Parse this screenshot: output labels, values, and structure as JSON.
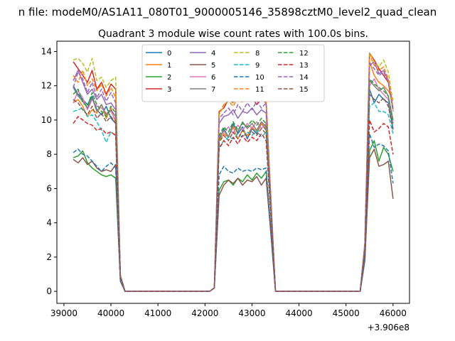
{
  "chart_data": {
    "type": "line",
    "suptitle": "n file: modeM0/AS1A11_080T01_9000005146_35898cztM0_level2_quad_clean",
    "title": "Quadrant 3 module wise count rates with 100.0s bins.",
    "xlabel": "",
    "ylabel": "",
    "x_offset_label": "+3.906e8",
    "xlim": [
      38850,
      46350
    ],
    "ylim": [
      -0.7,
      14.6
    ],
    "xticks": [
      39000,
      40000,
      41000,
      42000,
      43000,
      44000,
      45000,
      46000
    ],
    "xtick_labels": [
      "39000",
      "40000",
      "41000",
      "42000",
      "43000",
      "44000",
      "45000",
      "46000"
    ],
    "yticks": [
      0,
      2,
      4,
      6,
      8,
      10,
      12,
      14
    ],
    "ytick_labels": [
      "0",
      "2",
      "4",
      "6",
      "8",
      "10",
      "12",
      "14"
    ],
    "grid": false,
    "legend_position": "top-center",
    "legend_columns": 4,
    "x": [
      39200,
      39300,
      39400,
      39500,
      39600,
      39700,
      39800,
      39900,
      40000,
      40100,
      40200,
      40300,
      40400,
      40500,
      40600,
      40700,
      40800,
      40900,
      41000,
      41100,
      41200,
      41300,
      41400,
      41500,
      41600,
      41700,
      41800,
      41900,
      42000,
      42100,
      42200,
      42300,
      42400,
      42500,
      42600,
      42700,
      42800,
      42900,
      43000,
      43100,
      43200,
      43300,
      43400,
      43500,
      43600,
      43700,
      43800,
      43900,
      44000,
      44100,
      44200,
      44300,
      44400,
      44500,
      44600,
      44700,
      44800,
      44900,
      45000,
      45100,
      45200,
      45300,
      45400,
      45500,
      45600,
      45700,
      45800,
      45900,
      46000
    ],
    "series": [
      {
        "name": "0",
        "color": "#1f77b4",
        "dashed": false,
        "values": [
          12.0,
          11.5,
          11.2,
          10.9,
          11.4,
          10.6,
          10.3,
          10.8,
          10.1,
          9.8,
          0.9,
          0,
          0,
          0,
          0,
          0,
          0,
          0,
          0,
          0,
          0,
          0,
          0,
          0,
          0,
          0,
          0,
          0,
          0,
          0,
          0.2,
          8.8,
          9.5,
          9.0,
          9.8,
          9.2,
          9.6,
          8.9,
          9.5,
          9.2,
          9.8,
          9.4,
          5.0,
          0,
          0,
          0,
          0,
          0,
          0,
          0,
          0,
          0,
          0,
          0,
          0,
          0,
          0,
          0,
          0,
          0,
          0,
          0,
          2.5,
          11.8,
          11.0,
          11.5,
          11.2,
          11.0,
          9.5
        ]
      },
      {
        "name": "1",
        "color": "#ff7f0e",
        "dashed": false,
        "values": [
          11.0,
          11.2,
          10.8,
          10.2,
          10.6,
          10.4,
          10.9,
          10.1,
          10.7,
          9.8,
          0.9,
          0,
          0,
          0,
          0,
          0,
          0,
          0,
          0,
          0,
          0,
          0,
          0,
          0,
          0,
          0,
          0,
          0,
          0,
          0,
          0.2,
          8.8,
          9.2,
          9.0,
          9.6,
          8.9,
          9.4,
          9.1,
          9.6,
          9.3,
          9.8,
          9.5,
          5.0,
          0,
          0,
          0,
          0,
          0,
          0,
          0,
          0,
          0,
          0,
          0,
          0,
          0,
          0,
          0,
          0,
          0,
          0,
          0,
          2.5,
          13.4,
          12.6,
          12.2,
          12.0,
          11.7,
          11.2
        ]
      },
      {
        "name": "2",
        "color": "#2ca02c",
        "dashed": false,
        "values": [
          7.8,
          7.9,
          8.2,
          7.5,
          7.2,
          7.0,
          6.8,
          6.7,
          6.8,
          6.6,
          0.6,
          0,
          0,
          0,
          0,
          0,
          0,
          0,
          0,
          0,
          0,
          0,
          0,
          0,
          0,
          0,
          0,
          0,
          0,
          0,
          0.2,
          5.9,
          6.4,
          6.5,
          6.2,
          6.6,
          6.4,
          6.8,
          6.5,
          6.9,
          6.6,
          7.0,
          3.5,
          0,
          0,
          0,
          0,
          0,
          0,
          0,
          0,
          0,
          0,
          0,
          0,
          0,
          0,
          0,
          0,
          0,
          0,
          0,
          1.8,
          8.2,
          8.8,
          7.6,
          8.4,
          8.0,
          7.0
        ]
      },
      {
        "name": "3",
        "color": "#d62728",
        "dashed": false,
        "values": [
          13.4,
          13.0,
          12.6,
          12.2,
          12.9,
          11.8,
          12.2,
          11.5,
          12.1,
          11.8,
          0.9,
          0,
          0,
          0,
          0,
          0,
          0,
          0,
          0,
          0,
          0,
          0,
          0,
          0,
          0,
          0,
          0,
          0,
          0,
          0,
          0.2,
          10.5,
          10.7,
          11.2,
          11.0,
          11.6,
          11.4,
          11.1,
          11.3,
          10.9,
          11.2,
          11.0,
          5.5,
          0,
          0,
          0,
          0,
          0,
          0,
          0,
          0,
          0,
          0,
          0,
          0,
          0,
          0,
          0,
          0,
          0,
          0,
          0,
          2.8,
          13.9,
          13.5,
          13.0,
          12.6,
          12.2,
          10.6
        ]
      },
      {
        "name": "4",
        "color": "#9467bd",
        "dashed": false,
        "values": [
          12.3,
          12.9,
          12.2,
          11.5,
          11.8,
          11.2,
          11.5,
          10.9,
          11.0,
          10.6,
          0.9,
          0,
          0,
          0,
          0,
          0,
          0,
          0,
          0,
          0,
          0,
          0,
          0,
          0,
          0,
          0,
          0,
          0,
          0,
          0,
          0.2,
          9.8,
          10.2,
          10.3,
          10.6,
          10.1,
          10.5,
          10.4,
          10.7,
          10.3,
          10.6,
          10.4,
          5.2,
          0,
          0,
          0,
          0,
          0,
          0,
          0,
          0,
          0,
          0,
          0,
          0,
          0,
          0,
          0,
          0,
          0,
          0,
          0,
          2.7,
          13.2,
          13.4,
          12.7,
          12.9,
          12.3,
          10.7
        ]
      },
      {
        "name": "5",
        "color": "#8c564b",
        "dashed": false,
        "values": [
          7.7,
          7.5,
          7.8,
          7.4,
          7.6,
          7.2,
          7.0,
          7.1,
          7.0,
          7.4,
          0.6,
          0,
          0,
          0,
          0,
          0,
          0,
          0,
          0,
          0,
          0,
          0,
          0,
          0,
          0,
          0,
          0,
          0,
          0,
          0,
          0.2,
          5.6,
          6.2,
          6.5,
          6.3,
          6.6,
          6.2,
          6.5,
          6.4,
          6.7,
          6.2,
          6.6,
          3.4,
          0,
          0,
          0,
          0,
          0,
          0,
          0,
          0,
          0,
          0,
          0,
          0,
          0,
          0,
          0,
          0,
          0,
          0,
          0,
          1.8,
          7.8,
          8.3,
          7.3,
          7.4,
          7.6,
          5.4
        ]
      },
      {
        "name": "6",
        "color": "#e377c2",
        "dashed": false,
        "values": [
          11.0,
          11.7,
          11.3,
          10.6,
          11.2,
          10.8,
          10.7,
          10.4,
          10.5,
          10.0,
          0.9,
          0,
          0,
          0,
          0,
          0,
          0,
          0,
          0,
          0,
          0,
          0,
          0,
          0,
          0,
          0,
          0,
          0,
          0,
          0,
          0.2,
          9.0,
          9.3,
          9.6,
          9.2,
          9.7,
          9.4,
          9.8,
          9.5,
          9.9,
          9.5,
          9.8,
          5.0,
          0,
          0,
          0,
          0,
          0,
          0,
          0,
          0,
          0,
          0,
          0,
          0,
          0,
          0,
          0,
          0,
          0,
          0,
          0,
          2.6,
          12.0,
          12.4,
          11.8,
          11.5,
          11.2,
          9.8
        ]
      },
      {
        "name": "7",
        "color": "#7f7f7f",
        "dashed": false,
        "values": [
          11.9,
          11.4,
          11.1,
          10.7,
          11.3,
          10.5,
          10.9,
          10.3,
          10.6,
          10.2,
          0.9,
          0,
          0,
          0,
          0,
          0,
          0,
          0,
          0,
          0,
          0,
          0,
          0,
          0,
          0,
          0,
          0,
          0,
          0,
          0,
          0.2,
          9.0,
          9.4,
          9.0,
          9.7,
          9.3,
          9.9,
          9.5,
          9.8,
          9.4,
          9.9,
          9.6,
          5.0,
          0,
          0,
          0,
          0,
          0,
          0,
          0,
          0,
          0,
          0,
          0,
          0,
          0,
          0,
          0,
          0,
          0,
          0,
          0,
          2.6,
          12.3,
          12.0,
          11.7,
          11.9,
          11.4,
          10.0
        ]
      },
      {
        "name": "8",
        "color": "#bcbd22",
        "dashed": true,
        "values": [
          13.5,
          13.6,
          13.3,
          12.8,
          13.6,
          12.3,
          12.5,
          11.9,
          12.3,
          12.5,
          1.0,
          0,
          0,
          0,
          0,
          0,
          0,
          0,
          0,
          0,
          0,
          0,
          0,
          0,
          0,
          0,
          0,
          0,
          0,
          0,
          0.2,
          10.3,
          10.8,
          11.5,
          11.0,
          11.4,
          11.3,
          11.2,
          11.6,
          11.4,
          11.5,
          11.1,
          5.6,
          0,
          0,
          0,
          0,
          0,
          0,
          0,
          0,
          0,
          0,
          0,
          0,
          0,
          0,
          0,
          0,
          0,
          0,
          0,
          2.8,
          13.9,
          13.4,
          13.1,
          13.5,
          12.8,
          11.0
        ]
      },
      {
        "name": "9",
        "color": "#17becf",
        "dashed": true,
        "values": [
          10.5,
          10.6,
          10.7,
          10.2,
          10.3,
          9.9,
          9.4,
          8.7,
          9.3,
          9.1,
          0.8,
          0,
          0,
          0,
          0,
          0,
          0,
          0,
          0,
          0,
          0,
          0,
          0,
          0,
          0,
          0,
          0,
          0,
          0,
          0,
          0.2,
          8.4,
          8.8,
          9.0,
          8.9,
          9.2,
          9.0,
          9.3,
          9.1,
          9.4,
          9.0,
          9.3,
          4.8,
          0,
          0,
          0,
          0,
          0,
          0,
          0,
          0,
          0,
          0,
          0,
          0,
          0,
          0,
          0,
          0,
          0,
          0,
          0,
          2.4,
          10.8,
          11.0,
          10.5,
          10.5,
          10.3,
          9.2
        ]
      },
      {
        "name": "10",
        "color": "#1f77b4",
        "dashed": true,
        "values": [
          8.1,
          8.3,
          8.0,
          7.9,
          7.6,
          7.3,
          7.0,
          7.3,
          7.5,
          7.2,
          0.6,
          0,
          0,
          0,
          0,
          0,
          0,
          0,
          0,
          0,
          0,
          0,
          0,
          0,
          0,
          0,
          0,
          0,
          0,
          0,
          0.2,
          6.8,
          7.3,
          7.0,
          6.9,
          7.2,
          7.0,
          7.1,
          7.0,
          7.2,
          7.1,
          7.2,
          3.6,
          0,
          0,
          0,
          0,
          0,
          0,
          0,
          0,
          0,
          0,
          0,
          0,
          0,
          0,
          0,
          0,
          0,
          0,
          0,
          1.9,
          9.2,
          8.4,
          8.6,
          8.5,
          8.2,
          6.3
        ]
      },
      {
        "name": "11",
        "color": "#ff7f0e",
        "dashed": true,
        "values": [
          12.6,
          12.2,
          12.9,
          12.0,
          12.4,
          11.7,
          12.1,
          11.4,
          11.9,
          11.3,
          0.9,
          0,
          0,
          0,
          0,
          0,
          0,
          0,
          0,
          0,
          0,
          0,
          0,
          0,
          0,
          0,
          0,
          0,
          0,
          0,
          0.2,
          10.4,
          10.9,
          11.1,
          10.8,
          11.3,
          11.0,
          11.4,
          11.1,
          11.5,
          11.2,
          11.4,
          5.5,
          0,
          0,
          0,
          0,
          0,
          0,
          0,
          0,
          0,
          0,
          0,
          0,
          0,
          0,
          0,
          0,
          0,
          0,
          0,
          2.8,
          13.8,
          13.2,
          12.9,
          13.1,
          12.4,
          10.6
        ]
      },
      {
        "name": "12",
        "color": "#2ca02c",
        "dashed": true,
        "values": [
          11.5,
          11.8,
          11.0,
          10.8,
          11.6,
          10.9,
          10.5,
          10.2,
          10.8,
          10.4,
          0.9,
          0,
          0,
          0,
          0,
          0,
          0,
          0,
          0,
          0,
          0,
          0,
          0,
          0,
          0,
          0,
          0,
          0,
          0,
          0,
          0.2,
          9.1,
          9.6,
          9.3,
          9.9,
          9.4,
          9.8,
          9.6,
          10.0,
          9.7,
          10.1,
          9.8,
          5.0,
          0,
          0,
          0,
          0,
          0,
          0,
          0,
          0,
          0,
          0,
          0,
          0,
          0,
          0,
          0,
          0,
          0,
          0,
          0,
          2.6,
          12.4,
          12.1,
          11.9,
          11.7,
          11.4,
          9.8
        ]
      },
      {
        "name": "13",
        "color": "#d62728",
        "dashed": true,
        "values": [
          9.8,
          10.2,
          10.0,
          9.8,
          9.7,
          9.4,
          9.5,
          9.2,
          9.3,
          9.1,
          0.8,
          0,
          0,
          0,
          0,
          0,
          0,
          0,
          0,
          0,
          0,
          0,
          0,
          0,
          0,
          0,
          0,
          0,
          0,
          0,
          0.2,
          8.3,
          8.8,
          8.5,
          9.0,
          8.6,
          9.1,
          8.7,
          9.0,
          8.8,
          9.2,
          8.8,
          4.5,
          0,
          0,
          0,
          0,
          0,
          0,
          0,
          0,
          0,
          0,
          0,
          0,
          0,
          0,
          0,
          0,
          0,
          0,
          0,
          2.3,
          10.0,
          9.3,
          9.5,
          9.8,
          9.6,
          8.0
        ]
      },
      {
        "name": "14",
        "color": "#9467bd",
        "dashed": true,
        "values": [
          11.9,
          12.8,
          12.4,
          11.6,
          12.2,
          11.3,
          11.8,
          11.1,
          11.6,
          11.0,
          0.9,
          0,
          0,
          0,
          0,
          0,
          0,
          0,
          0,
          0,
          0,
          0,
          0,
          0,
          0,
          0,
          0,
          0,
          0,
          0,
          0.2,
          10.1,
          10.4,
          10.7,
          10.3,
          10.9,
          10.5,
          11.0,
          10.6,
          11.1,
          10.7,
          11.0,
          5.3,
          0,
          0,
          0,
          0,
          0,
          0,
          0,
          0,
          0,
          0,
          0,
          0,
          0,
          0,
          0,
          0,
          0,
          0,
          0,
          2.7,
          13.3,
          13.0,
          12.6,
          12.8,
          12.2,
          10.5
        ]
      },
      {
        "name": "15",
        "color": "#8c564b",
        "dashed": true,
        "values": [
          11.2,
          11.0,
          10.6,
          10.3,
          10.8,
          10.1,
          10.4,
          9.9,
          10.2,
          9.8,
          0.8,
          0,
          0,
          0,
          0,
          0,
          0,
          0,
          0,
          0,
          0,
          0,
          0,
          0,
          0,
          0,
          0,
          0,
          0,
          0,
          0.2,
          8.7,
          9.1,
          8.8,
          9.3,
          8.9,
          9.4,
          9.0,
          9.3,
          9.1,
          9.5,
          9.2,
          4.7,
          0,
          0,
          0,
          0,
          0,
          0,
          0,
          0,
          0,
          0,
          0,
          0,
          0,
          0,
          0,
          0,
          0,
          0,
          0,
          2.4,
          11.5,
          11.2,
          11.0,
          11.3,
          10.8,
          9.4
        ]
      }
    ]
  }
}
